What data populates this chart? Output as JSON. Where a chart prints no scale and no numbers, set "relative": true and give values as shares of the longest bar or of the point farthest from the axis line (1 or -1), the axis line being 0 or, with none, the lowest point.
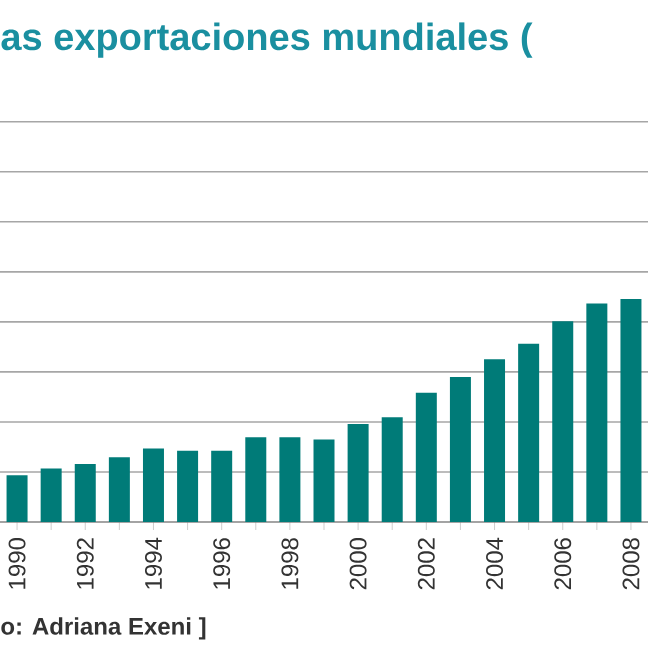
{
  "chart_data": {
    "type": "bar",
    "title": "as exportaciones mundiales (",
    "categories": [
      "1990",
      null,
      "1992",
      null,
      "1994",
      null,
      "1996",
      null,
      "1998",
      null,
      "2000",
      null,
      "2002",
      null,
      "2004",
      null,
      "2006",
      null,
      "2008"
    ],
    "values": [
      0.21,
      0.24,
      0.26,
      0.29,
      0.33,
      0.32,
      0.32,
      0.38,
      0.38,
      0.37,
      0.44,
      0.47,
      0.58,
      0.65,
      0.73,
      0.8,
      0.9,
      0.98,
      1
    ],
    "color": "#007b78",
    "relative": true,
    "grid": "y",
    "annotations": [
      "o: Adriana Exeni ]"
    ]
  }
}
